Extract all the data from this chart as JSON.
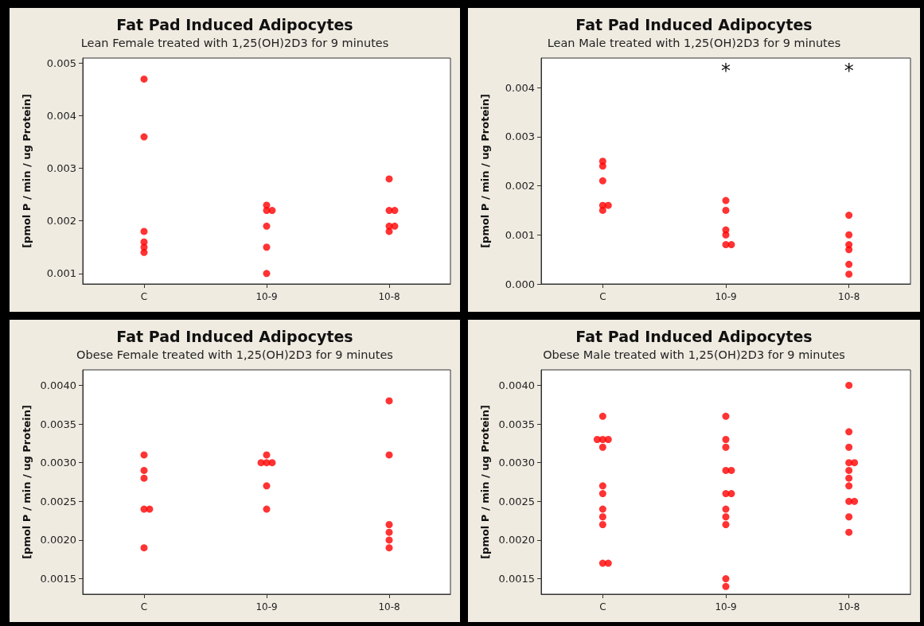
{
  "chart_data": [
    {
      "type": "scatter",
      "title": "Fat Pad Induced Adipocytes",
      "subtitle": "Lean Female treated with 1,25(OH)2D3 for 9 minutes",
      "ylabel": "[pmol P / min / ug Protein]",
      "marker": "circle",
      "grid": false,
      "categories": [
        "C",
        "10-9",
        "10-8"
      ],
      "ylim": [
        0.0008,
        0.0051
      ],
      "yticks": [
        0.001,
        0.002,
        0.003,
        0.004,
        0.005
      ],
      "series": [
        {
          "color": "#ff0000",
          "x": [
            "C",
            "C",
            "C",
            "C",
            "C",
            "C",
            "10-9",
            "10-9",
            "10-9",
            "10-9",
            "10-9",
            "10-9",
            "10-8",
            "10-8",
            "10-8",
            "10-8",
            "10-8",
            "10-8"
          ],
          "values": [
            0.0047,
            0.0036,
            0.0018,
            0.0016,
            0.0014,
            0.0015,
            0.0022,
            0.0023,
            0.0022,
            0.0019,
            0.0015,
            0.001,
            0.0028,
            0.0022,
            0.0022,
            0.0019,
            0.0019,
            0.0018
          ]
        }
      ]
    },
    {
      "type": "scatter",
      "title": "Fat Pad Induced Adipocytes",
      "subtitle": "Lean Male treated with 1,25(OH)2D3 for 9 minutes",
      "ylabel": "[pmol P / min / ug Protein]",
      "marker": "circle",
      "grid": false,
      "categories": [
        "C",
        "10-9",
        "10-8"
      ],
      "ylim": [
        0,
        0.0046
      ],
      "yticks": [
        {
          "value": 0,
          "label": "0.000"
        },
        0.001,
        0.002,
        0.003,
        0.004
      ],
      "annotations": [
        "*",
        "*"
      ],
      "series": [
        {
          "color": "#ff0000",
          "x": [
            "C",
            "C",
            "C",
            "C",
            "C",
            "C",
            "10-9",
            "10-9",
            "10-9",
            "10-9",
            "10-9",
            "10-9",
            "10-8",
            "10-8",
            "10-8",
            "10-8",
            "10-8",
            "10-8"
          ],
          "values": [
            0.0024,
            0.0025,
            0.0021,
            0.0016,
            0.0016,
            0.0015,
            0.0017,
            0.0015,
            0.0011,
            0.001,
            0.0008,
            0.0008,
            0.0014,
            0.001,
            0.0008,
            0.0007,
            0.0004,
            0.0002
          ]
        }
      ]
    },
    {
      "type": "scatter",
      "title": "Fat Pad Induced Adipocytes",
      "subtitle": "Obese Female treated with 1,25(OH)2D3 for 9 minutes",
      "ylabel": "[pmol P / min / ug Protein]",
      "marker": "circle",
      "grid": false,
      "categories": [
        "C",
        "10-9",
        "10-8"
      ],
      "ylim": [
        0.0013,
        0.0042
      ],
      "yticks": [
        {
          "value": 0.0015,
          "label": "0.0015"
        },
        {
          "value": 0.002,
          "label": "0.0020"
        },
        {
          "value": 0.0025,
          "label": "0.0025"
        },
        {
          "value": 0.003,
          "label": "0.0030"
        },
        {
          "value": 0.0035,
          "label": "0.0035"
        },
        {
          "value": 0.004,
          "label": "0.0040"
        }
      ],
      "series": [
        {
          "color": "#ff0000",
          "x": [
            "C",
            "C",
            "C",
            "C",
            "C",
            "C",
            "10-9",
            "10-9",
            "10-9",
            "10-9",
            "10-9",
            "10-9",
            "10-8",
            "10-8",
            "10-8",
            "10-8",
            "10-8",
            "10-8"
          ],
          "values": [
            0.0029,
            0.0031,
            0.0028,
            0.0024,
            0.0024,
            0.0019,
            0.0031,
            0.003,
            0.003,
            0.003,
            0.0027,
            0.0024,
            0.0038,
            0.0031,
            0.0022,
            0.0021,
            0.002,
            0.0019
          ]
        }
      ]
    },
    {
      "type": "scatter",
      "title": "Fat Pad Induced Adipocytes",
      "subtitle": "Obese Male treated with 1,25(OH)2D3 for 9 minutes",
      "ylabel": "[pmol P / min / ug Protein]",
      "marker": "circle",
      "grid": false,
      "categories": [
        "C",
        "10-9",
        "10-8"
      ],
      "ylim": [
        0.0013,
        0.0042
      ],
      "yticks": [
        {
          "value": 0.0015,
          "label": "0.0015"
        },
        {
          "value": 0.002,
          "label": "0.0020"
        },
        {
          "value": 0.0025,
          "label": "0.0025"
        },
        {
          "value": 0.003,
          "label": "0.0030"
        },
        {
          "value": 0.0035,
          "label": "0.0035"
        },
        {
          "value": 0.004,
          "label": "0.0040"
        }
      ],
      "series": [
        {
          "color": "#ff0000",
          "x": [
            "C",
            "C",
            "C",
            "C",
            "C",
            "C",
            "C",
            "C",
            "C",
            "C",
            "C",
            "C",
            "10-9",
            "10-9",
            "10-9",
            "10-9",
            "10-9",
            "10-9",
            "10-9",
            "10-9",
            "10-9",
            "10-9",
            "10-9",
            "10-9",
            "10-8",
            "10-8",
            "10-8",
            "10-8",
            "10-8",
            "10-8",
            "10-8",
            "10-8",
            "10-8",
            "10-8",
            "10-8",
            "10-8"
          ],
          "values": [
            0.0033,
            0.0033,
            0.0033,
            0.0036,
            0.0032,
            0.0027,
            0.0026,
            0.0024,
            0.0023,
            0.0022,
            0.0017,
            0.0017,
            0.0036,
            0.0033,
            0.0032,
            0.0029,
            0.0029,
            0.0026,
            0.0026,
            0.0024,
            0.0023,
            0.0022,
            0.0015,
            0.0014,
            0.004,
            0.0034,
            0.0032,
            0.003,
            0.003,
            0.0029,
            0.0028,
            0.0027,
            0.0025,
            0.0025,
            0.0023,
            0.0021
          ]
        }
      ]
    }
  ]
}
